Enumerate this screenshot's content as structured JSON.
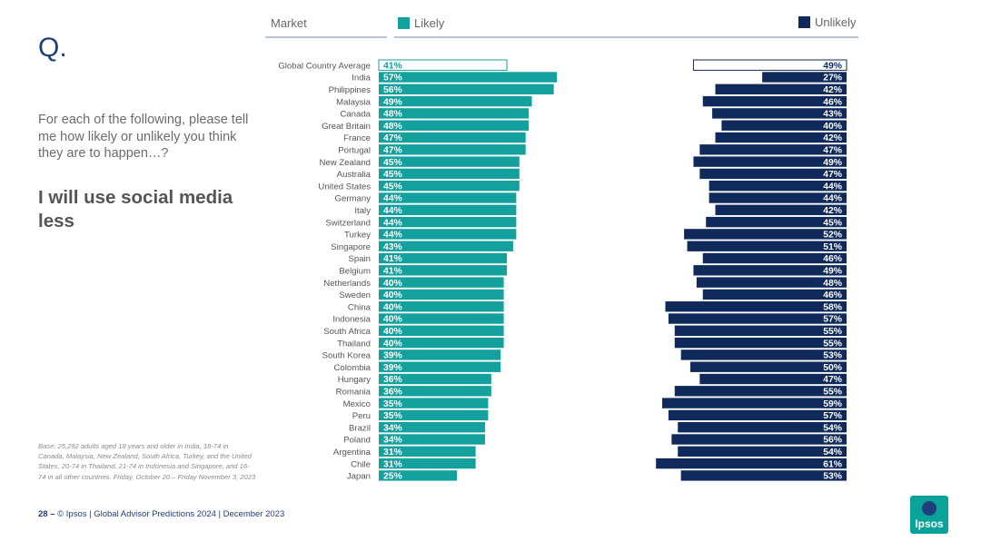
{
  "slide": {
    "q_label": "Q.",
    "question": "For each of the following, please tell me how likely or unlikely you think they are to happen…?",
    "statement": "I will use social media less",
    "base_note": "Base: 25,292 adults aged 18 years and older in India, 18-74 in Canada, Malaysia, New Zealand, South Africa, Turkey, and the United States, 20-74 in Thailand, 21-74 in Indonesia and Singapore, and 16-74 in all other countries. Friday, October 20 – Friday November 3, 2023",
    "page_number": "28 –",
    "footer_text": "© Ipsos | Global Advisor Predictions 2024 | December 2023",
    "logo_text": "Ipsos"
  },
  "colors": {
    "likely": "#14a09c",
    "unlikely": "#0f2a5a",
    "accent": "#1f3f7a"
  },
  "chart_data": {
    "type": "bar",
    "header_market": "Market",
    "series": [
      {
        "name": "Likely",
        "values": [
          41,
          57,
          56,
          49,
          48,
          48,
          47,
          47,
          45,
          45,
          45,
          44,
          44,
          44,
          44,
          43,
          41,
          41,
          40,
          40,
          40,
          40,
          40,
          40,
          39,
          39,
          36,
          36,
          35,
          35,
          34,
          34,
          31,
          31,
          25
        ]
      },
      {
        "name": "Unlikely",
        "values": [
          49,
          27,
          42,
          46,
          43,
          40,
          42,
          47,
          49,
          47,
          44,
          44,
          42,
          45,
          52,
          51,
          46,
          49,
          48,
          46,
          58,
          57,
          55,
          55,
          53,
          50,
          47,
          55,
          59,
          57,
          54,
          56,
          54,
          61,
          53
        ]
      }
    ],
    "categories": [
      "Global Country Average",
      "India",
      "Philippines",
      "Malaysia",
      "Canada",
      "Great Britain",
      "France",
      "Portugal",
      "New Zealand",
      "Australia",
      "United States",
      "Germany",
      "Italy",
      "Switzerland",
      "Turkey",
      "Singapore",
      "Spain",
      "Belgium",
      "Netherlands",
      "Sweden",
      "China",
      "Indonesia",
      "South Africa",
      "Thailand",
      "South Korea",
      "Colombia",
      "Hungary",
      "Romania",
      "Mexico",
      "Peru",
      "Brazil",
      "Poland",
      "Argentina",
      "Chile",
      "Japan"
    ]
  }
}
